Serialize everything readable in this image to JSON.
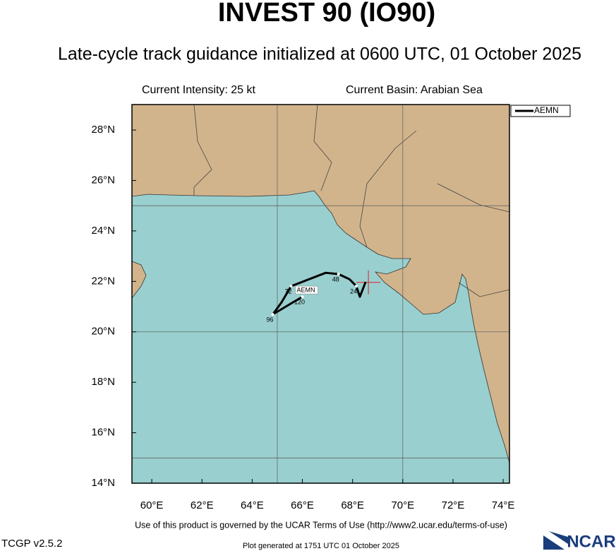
{
  "header": {
    "title": "INVEST 90 (IO90)",
    "subtitle": "Late-cycle track guidance initialized at 0600 UTC, 01 October 2025",
    "intensity": "Current Intensity: 25 kt",
    "basin": "Current Basin: Arabian Sea"
  },
  "chart_data": {
    "type": "track",
    "xlim": [
      59.21,
      74.25
    ],
    "ylim": [
      14,
      29.01
    ],
    "xticks": [
      {
        "value": 60,
        "label": "60°E"
      },
      {
        "value": 62,
        "label": "62°E"
      },
      {
        "value": 64,
        "label": "64°E"
      },
      {
        "value": 66,
        "label": "66°E"
      },
      {
        "value": 68,
        "label": "68°E"
      },
      {
        "value": 70,
        "label": "70°E"
      },
      {
        "value": 72,
        "label": "72°E"
      },
      {
        "value": 74,
        "label": "74°E"
      }
    ],
    "yticks": [
      {
        "value": 14,
        "label": "14°N"
      },
      {
        "value": 16,
        "label": "16°N"
      },
      {
        "value": 18,
        "label": "18°N"
      },
      {
        "value": 20,
        "label": "20°N"
      },
      {
        "value": 22,
        "label": "22°N"
      },
      {
        "value": 24,
        "label": "24°N"
      },
      {
        "value": 26,
        "label": "26°N"
      },
      {
        "value": 28,
        "label": "28°N"
      }
    ],
    "grid_x": [
      65,
      70
    ],
    "grid_y": [
      15,
      20,
      25
    ],
    "current_position": {
      "lon": 68.63,
      "lat": 21.96
    },
    "series": [
      {
        "name": "AEMN",
        "color": "#000000",
        "lon": [
          68.52,
          68.29,
          68.15,
          67.87,
          67.44,
          66.93,
          65.55,
          65.17,
          64.82,
          65.44,
          66.0
        ],
        "lat": [
          21.98,
          21.39,
          21.81,
          22.09,
          22.29,
          22.34,
          21.81,
          21.17,
          20.69,
          21.06,
          21.39
        ],
        "hour_labels": [
          null,
          null,
          24,
          null,
          48,
          null,
          72,
          null,
          96,
          null,
          120
        ]
      }
    ]
  },
  "footer": {
    "terms": "Use of this product is governed by the UCAR Terms of Use (http://www2.ucar.edu/terms-of-use)",
    "version": "TCGP v2.5.2",
    "generated": "Plot generated at 1751 UTC   01 October 2025",
    "logo": "NCAR"
  }
}
